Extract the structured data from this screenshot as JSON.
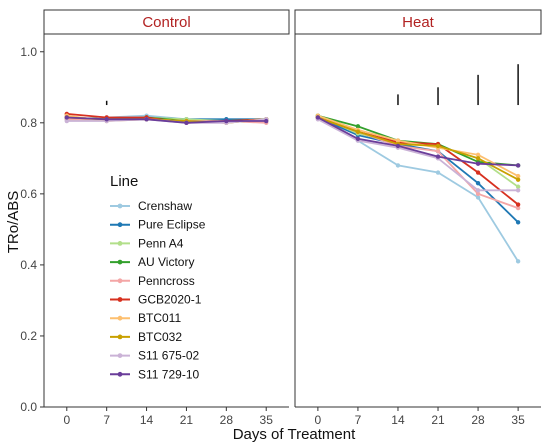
{
  "chart_data": {
    "type": "line",
    "xlabel": "Days of Treatment",
    "ylabel": "TRo/ABS",
    "ylim": [
      0,
      1.05
    ],
    "yticks": [
      0.0,
      0.2,
      0.4,
      0.6,
      0.8,
      1.0
    ],
    "ytick_labels": [
      "0.0",
      "0.2",
      "0.4",
      "0.6",
      "0.8",
      "1.0"
    ],
    "xticks": [
      0,
      7,
      14,
      21,
      28,
      35
    ],
    "xtick_labels": [
      "0",
      "7",
      "14",
      "21",
      "28",
      "35"
    ],
    "grid": false,
    "legend": {
      "title": "Line",
      "placement": "inside-left"
    },
    "facets": [
      {
        "name": "Control",
        "series": [
          {
            "name": "Crenshaw",
            "color": "#9ecae1",
            "values": [
              0.81,
              0.815,
              0.82,
              0.81,
              0.81,
              0.81
            ]
          },
          {
            "name": "Pure Eclipse",
            "color": "#1f78b4",
            "values": [
              0.815,
              0.81,
              0.815,
              0.81,
              0.81,
              0.81
            ]
          },
          {
            "name": "Penn A4",
            "color": "#b2df8a",
            "values": [
              0.81,
              0.81,
              0.815,
              0.81,
              0.805,
              0.81
            ]
          },
          {
            "name": "AU Victory",
            "color": "#33a02c",
            "values": [
              0.815,
              0.81,
              0.815,
              0.805,
              0.805,
              0.81
            ]
          },
          {
            "name": "Penncross",
            "color": "#f4a6a6",
            "values": [
              0.81,
              0.81,
              0.81,
              0.805,
              0.805,
              0.8
            ]
          },
          {
            "name": "GCB2020-1",
            "color": "#d7301f",
            "values": [
              0.825,
              0.815,
              0.815,
              0.8,
              0.805,
              0.81
            ]
          },
          {
            "name": "BTC011",
            "color": "#fdbf6f",
            "values": [
              0.82,
              0.805,
              0.81,
              0.805,
              0.8,
              0.81
            ]
          },
          {
            "name": "BTC032",
            "color": "#c8a000",
            "values": [
              0.815,
              0.81,
              0.81,
              0.805,
              0.8,
              0.81
            ]
          },
          {
            "name": "S11 675-02",
            "color": "#cab2d6",
            "values": [
              0.805,
              0.805,
              0.81,
              0.8,
              0.8,
              0.81
            ]
          },
          {
            "name": "S11 729-10",
            "color": "#6a3d9a",
            "values": [
              0.815,
              0.81,
              0.81,
              0.8,
              0.805,
              0.805
            ]
          }
        ]
      },
      {
        "name": "Heat",
        "series": [
          {
            "name": "Crenshaw",
            "color": "#9ecae1",
            "values": [
              0.815,
              0.75,
              0.68,
              0.66,
              0.59,
              0.41
            ]
          },
          {
            "name": "Pure Eclipse",
            "color": "#1f78b4",
            "values": [
              0.815,
              0.765,
              0.74,
              0.72,
              0.63,
              0.52
            ]
          },
          {
            "name": "Penn A4",
            "color": "#b2df8a",
            "values": [
              0.82,
              0.77,
              0.745,
              0.735,
              0.7,
              0.62
            ]
          },
          {
            "name": "AU Victory",
            "color": "#33a02c",
            "values": [
              0.82,
              0.79,
              0.75,
              0.74,
              0.69,
              0.68
            ]
          },
          {
            "name": "Penncross",
            "color": "#f4a6a6",
            "values": [
              0.815,
              0.775,
              0.735,
              0.72,
              0.6,
              0.56
            ]
          },
          {
            "name": "GCB2020-1",
            "color": "#d7301f",
            "values": [
              0.815,
              0.775,
              0.745,
              0.74,
              0.66,
              0.57
            ]
          },
          {
            "name": "BTC011",
            "color": "#fdbf6f",
            "values": [
              0.82,
              0.78,
              0.75,
              0.73,
              0.71,
              0.65
            ]
          },
          {
            "name": "BTC032",
            "color": "#c8a000",
            "values": [
              0.815,
              0.775,
              0.74,
              0.735,
              0.7,
              0.64
            ]
          },
          {
            "name": "S11 675-02",
            "color": "#cab2d6",
            "values": [
              0.81,
              0.75,
              0.73,
              0.7,
              0.61,
              0.61
            ]
          },
          {
            "name": "S11 729-10",
            "color": "#6a3d9a",
            "values": [
              0.815,
              0.755,
              0.735,
              0.705,
              0.685,
              0.68
            ]
          }
        ]
      }
    ],
    "annotations": [
      {
        "facet": "Control",
        "type": "significance-bar",
        "x": 7,
        "y_from": 0.85,
        "y_to": 0.862
      },
      {
        "facet": "Heat",
        "type": "significance-bar",
        "x": 14,
        "y_from": 0.85,
        "y_to": 0.88
      },
      {
        "facet": "Heat",
        "type": "significance-bar",
        "x": 21,
        "y_from": 0.85,
        "y_to": 0.9
      },
      {
        "facet": "Heat",
        "type": "significance-bar",
        "x": 28,
        "y_from": 0.85,
        "y_to": 0.935
      },
      {
        "facet": "Heat",
        "type": "significance-bar",
        "x": 35,
        "y_from": 0.85,
        "y_to": 0.965
      }
    ]
  }
}
